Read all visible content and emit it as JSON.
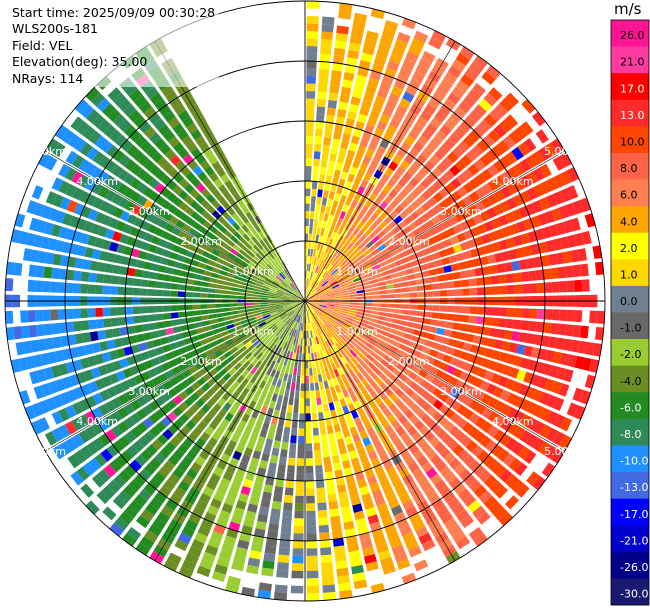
{
  "header": {
    "start_time": "Start time: 2025/09/09 00:30:28",
    "instrument": "WLS200s-181",
    "field": "Field: VEL",
    "elevation": "Elevation(deg): 35.00",
    "nrays": "NRays: 114"
  },
  "colorbar": {
    "unit": "m/s",
    "ticks": [
      "26.0",
      "21.0",
      "17.0",
      "13.0",
      "10.0",
      "8.0",
      "6.0",
      "4.0",
      "2.0",
      "1.0",
      "0.0",
      "-1.0",
      "-2.0",
      "-4.0",
      "-6.0",
      "-8.0",
      "-10.0",
      "-13.0",
      "-17.0",
      "-21.0",
      "-26.0",
      "-30.0"
    ],
    "colors": [
      "#ff1493",
      "#ff3aa0",
      "#ff0000",
      "#ff2a2a",
      "#ff4500",
      "#ff6347",
      "#ff7f50",
      "#ffa500",
      "#ffff00",
      "#ffd700",
      "#708090",
      "#696969",
      "#9acd32",
      "#6b8e23",
      "#228b22",
      "#2e8b57",
      "#1e90ff",
      "#4169e1",
      "#0000ff",
      "#0000cd",
      "#00008b",
      "#191970"
    ]
  },
  "chart_data": {
    "type": "polar-ppi",
    "field": "VEL",
    "units": "m/s",
    "nrays": 114,
    "elevation_deg": 35.0,
    "range_rings_km": [
      1.0,
      2.0,
      3.0,
      4.0,
      5.0
    ],
    "range_labels": [
      "1.00km",
      "2.00km",
      "3.00km",
      "4.00km",
      "5.00km"
    ],
    "max_range_km": 5.0,
    "missing_sector_deg": [
      -28,
      0
    ],
    "wind_from_az_deg": 270,
    "vmin": -30.0,
    "vmax": 30.0
  }
}
